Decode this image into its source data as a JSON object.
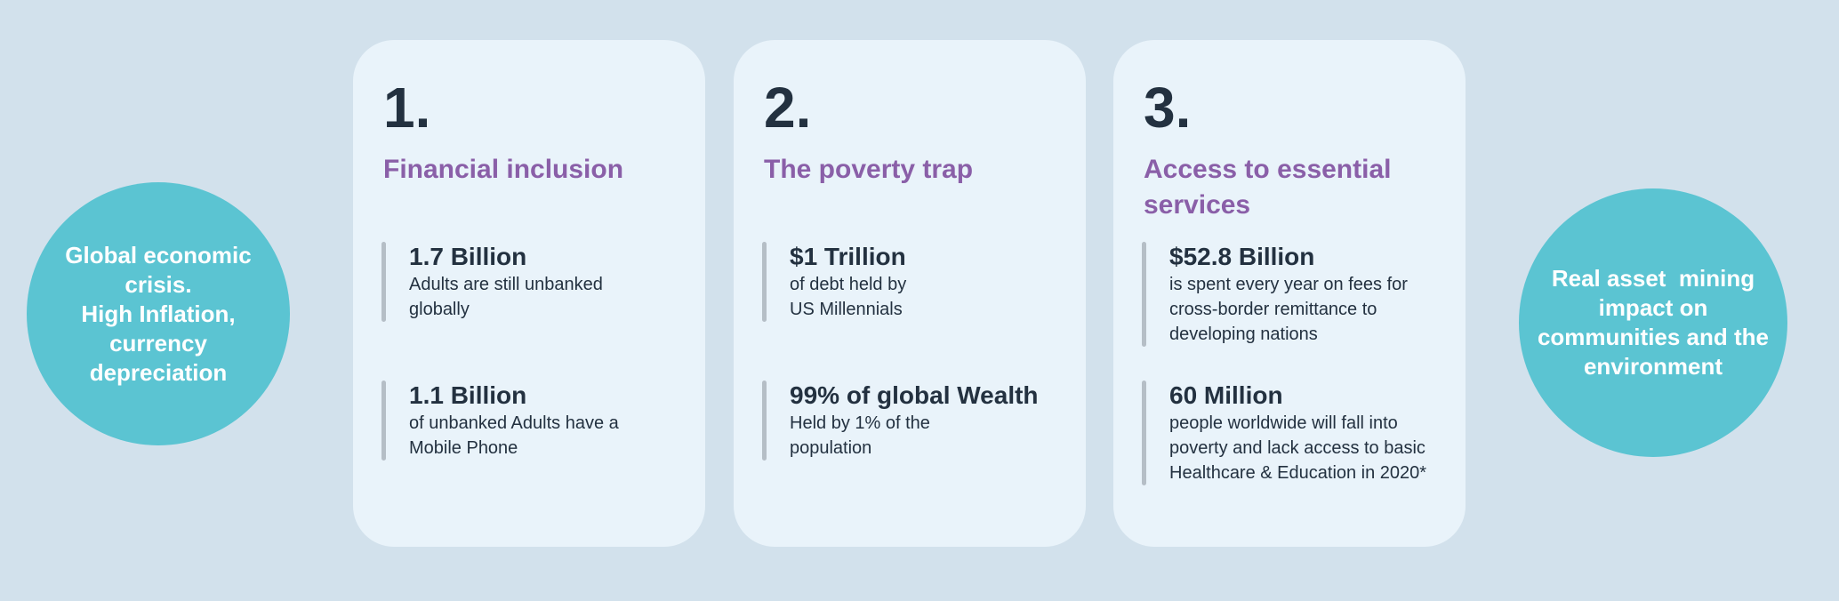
{
  "colors": {
    "canvas_bg": "#d2e1ec",
    "card_bg": "#e9f3fa",
    "circle_bg": "#5bc4d2",
    "circle_text": "#ffffff",
    "heading": "#8a5fa8",
    "dark": "#233140",
    "bar": "#b5bec6"
  },
  "left_circle": {
    "text": "Global economic\ncrisis.\nHigh Inflation,\ncurrency\ndepreciation"
  },
  "right_circle": {
    "text": "Real asset  mining\nimpact on\ncommunities and the\nenvironment"
  },
  "cards": [
    {
      "number": "1.",
      "title": "Financial inclusion",
      "stats": [
        {
          "value": "1.7 Billion",
          "description": "Adults are still unbanked\nglobally"
        },
        {
          "value": "1.1 Billion",
          "description": "of unbanked Adults have a\nMobile Phone"
        }
      ]
    },
    {
      "number": "2.",
      "title": "The poverty trap",
      "stats": [
        {
          "value": "$1 Trillion",
          "description": "of debt held by\nUS Millennials"
        },
        {
          "value": "99% of global Wealth",
          "description": "Held by 1% of the\npopulation"
        }
      ]
    },
    {
      "number": "3.",
      "title": "Access to essential\nservices",
      "stats": [
        {
          "value": "$52.8 Billion",
          "description": "is spent every year on fees for\ncross-border remittance to\ndeveloping nations"
        },
        {
          "value": "60 Million",
          "description": "people worldwide will fall into\npoverty and lack access to basic\nHealthcare & Education in 2020*"
        }
      ]
    }
  ]
}
